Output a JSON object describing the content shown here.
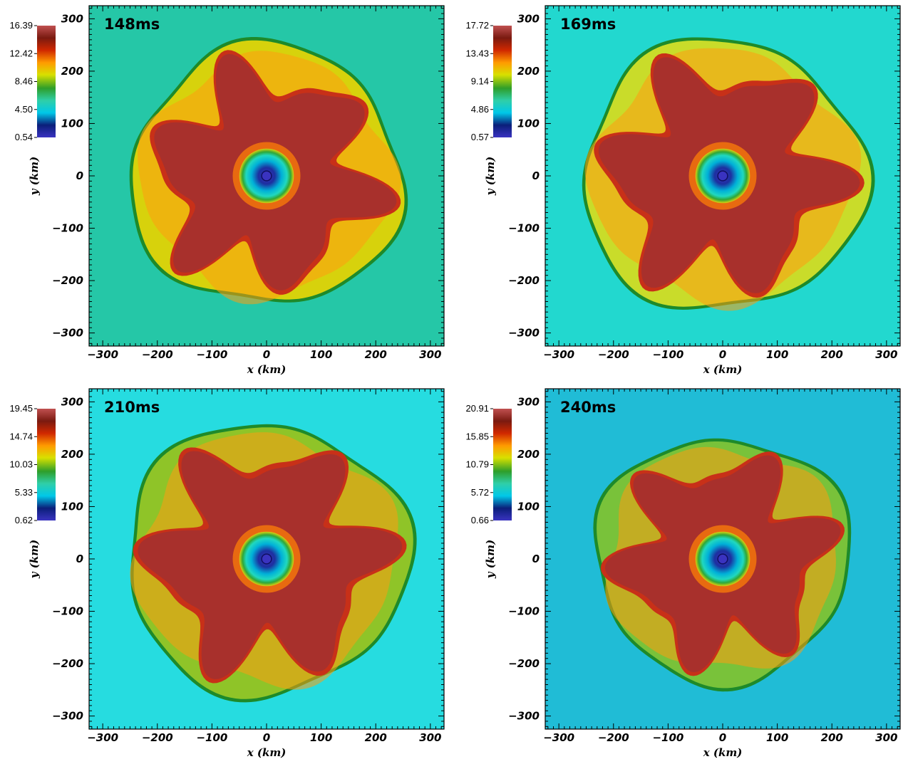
{
  "axes": {
    "xlabel": "x  (km)",
    "ylabel": "y  (km)",
    "ticks": [
      "−300",
      "−200",
      "−100",
      "0",
      "100",
      "200",
      "300"
    ],
    "tick_values": [
      -300,
      -200,
      -100,
      0,
      100,
      200,
      300
    ],
    "range": [
      -325,
      325
    ]
  },
  "colormap": [
    "#3a33c0",
    "#0b1f7a",
    "#00c8e8",
    "#2fcfa8",
    "#2e9e2a",
    "#d8e000",
    "#ff9a00",
    "#d02800",
    "#7a1a10",
    "#c05050"
  ],
  "panels": [
    {
      "time": "148ms",
      "colorbar": [
        "16.39",
        "12.42",
        "8.46",
        "4.50",
        "0.54"
      ],
      "background": "#25c7a7",
      "ring": "#d7d20c",
      "shock_radius": 245
    },
    {
      "time": "169ms",
      "colorbar": [
        "17.72",
        "13.43",
        "9.14",
        "4.86",
        "0.57"
      ],
      "background": "#22d8cf",
      "ring": "#c9dc2a",
      "shock_radius": 255
    },
    {
      "time": "210ms",
      "colorbar": [
        "19.45",
        "14.74",
        "10.03",
        "5.33",
        "0.62"
      ],
      "background": "#26dce0",
      "ring": "#8fc428",
      "shock_radius": 255
    },
    {
      "time": "240ms",
      "colorbar": [
        "20.91",
        "15.85",
        "10.79",
        "5.72",
        "0.66"
      ],
      "background": "#20bcd6",
      "ring": "#79c23a",
      "shock_radius": 230
    }
  ]
}
